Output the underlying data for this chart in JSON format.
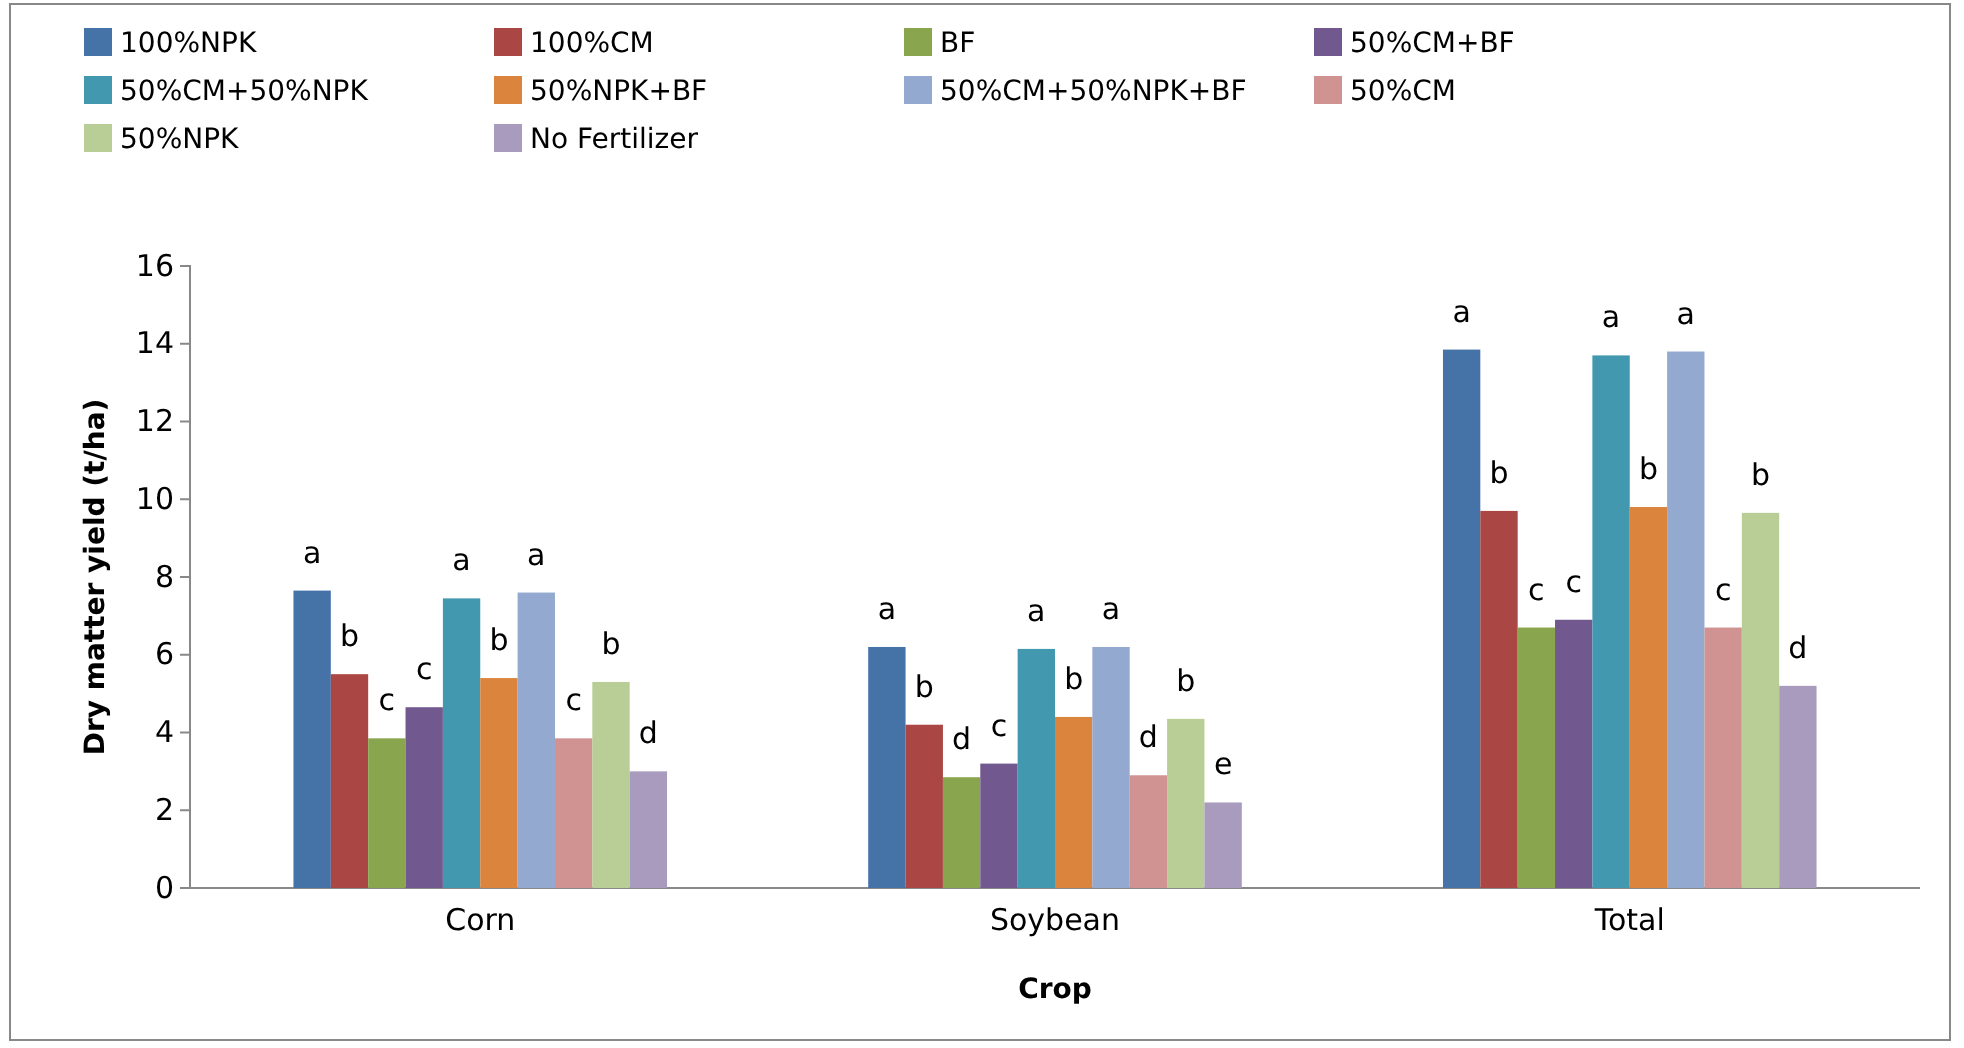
{
  "chart_data": {
    "type": "bar",
    "xlabel": "Crop",
    "ylabel": "Dry matter yield (t/ha)",
    "categories": [
      "Corn",
      "Soybean",
      "Total"
    ],
    "series": [
      {
        "name": "100%NPK",
        "color": "#4572a7",
        "values": [
          7.65,
          6.2,
          13.85
        ],
        "value_labels": [
          "a",
          "a",
          "a"
        ]
      },
      {
        "name": "100%CM",
        "color": "#aa4643",
        "values": [
          5.5,
          4.2,
          9.7
        ],
        "value_labels": [
          "b",
          "b",
          "b"
        ]
      },
      {
        "name": "BF",
        "color": "#89a54e",
        "values": [
          3.85,
          2.85,
          6.7
        ],
        "value_labels": [
          "c",
          "d",
          "c"
        ]
      },
      {
        "name": "50%CM+BF",
        "color": "#71588f",
        "values": [
          4.65,
          3.2,
          6.9
        ],
        "value_labels": [
          "c",
          "c",
          "c"
        ]
      },
      {
        "name": "50%CM+50%NPK",
        "color": "#4198af",
        "values": [
          7.45,
          6.15,
          13.7
        ],
        "value_labels": [
          "a",
          "a",
          "a"
        ]
      },
      {
        "name": "50%NPK+BF",
        "color": "#db843d",
        "values": [
          5.4,
          4.4,
          9.8
        ],
        "value_labels": [
          "b",
          "b",
          "b"
        ]
      },
      {
        "name": "50%CM+50%NPK+BF",
        "color": "#93a9cf",
        "values": [
          7.6,
          6.2,
          13.8
        ],
        "value_labels": [
          "a",
          "a",
          "a"
        ]
      },
      {
        "name": "50%CM",
        "color": "#d19392",
        "values": [
          3.85,
          2.9,
          6.7
        ],
        "value_labels": [
          "c",
          "d",
          "c"
        ]
      },
      {
        "name": "50%NPK",
        "color": "#b9cd96",
        "values": [
          5.3,
          4.35,
          9.65
        ],
        "value_labels": [
          "b",
          "b",
          "b"
        ]
      },
      {
        "name": "No Fertilizer",
        "color": "#a99bbd",
        "values": [
          3.0,
          2.2,
          5.2
        ],
        "value_labels": [
          "d",
          "e",
          "d"
        ]
      }
    ],
    "ylim": [
      0,
      16
    ],
    "yticks": [
      0,
      2,
      4,
      6,
      8,
      10,
      12,
      14,
      16
    ],
    "grid": false,
    "legend": "top"
  }
}
